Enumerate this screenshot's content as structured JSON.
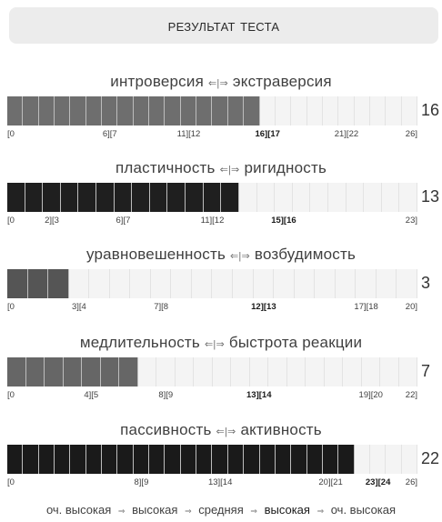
{
  "header": {
    "title": "Результат теста"
  },
  "scales": [
    {
      "left_label": "интроверсия",
      "right_label": "экстраверсия",
      "arrows": "⇐|⇒",
      "value": "16",
      "max": 26,
      "fill_color": "#6e6e6e",
      "tick_labels": [
        {
          "text": "[0",
          "at": 0,
          "bold": false
        },
        {
          "text": "6][7",
          "at": 6.5,
          "bold": false
        },
        {
          "text": "11][12",
          "at": 11.5,
          "bold": false
        },
        {
          "text": "16][17",
          "at": 16.5,
          "bold": true
        },
        {
          "text": "21][22",
          "at": 21.5,
          "bold": false
        },
        {
          "text": "26]",
          "at": 26,
          "bold": false
        }
      ]
    },
    {
      "left_label": "пластичность",
      "right_label": "ригидность",
      "arrows": "⇐|⇒",
      "value": "13",
      "max": 23,
      "fill_color": "#1f1f1f",
      "tick_labels": [
        {
          "text": "[0",
          "at": 0,
          "bold": false
        },
        {
          "text": "2][3",
          "at": 2.5,
          "bold": false
        },
        {
          "text": "6][7",
          "at": 6.5,
          "bold": false
        },
        {
          "text": "11][12",
          "at": 11.5,
          "bold": false
        },
        {
          "text": "15][16",
          "at": 15.5,
          "bold": true
        },
        {
          "text": "23]",
          "at": 23,
          "bold": false
        }
      ]
    },
    {
      "left_label": "уравновешенность",
      "right_label": "возбудимость",
      "arrows": "⇐|⇒",
      "value": "3",
      "max": 20,
      "fill_color": "#555555",
      "tick_labels": [
        {
          "text": "[0",
          "at": 0,
          "bold": false
        },
        {
          "text": "3][4",
          "at": 3.5,
          "bold": false
        },
        {
          "text": "7][8",
          "at": 7.5,
          "bold": false
        },
        {
          "text": "12][13",
          "at": 12.5,
          "bold": true
        },
        {
          "text": "17][18",
          "at": 17.5,
          "bold": false
        },
        {
          "text": "20]",
          "at": 20,
          "bold": false
        }
      ]
    },
    {
      "left_label": "медлительность",
      "right_label": "быстрота реакции",
      "arrows": "⇐|⇒",
      "value": "7",
      "max": 22,
      "fill_color": "#666666",
      "tick_labels": [
        {
          "text": "[0",
          "at": 0,
          "bold": false
        },
        {
          "text": "4][5",
          "at": 4.5,
          "bold": false
        },
        {
          "text": "8][9",
          "at": 8.5,
          "bold": false
        },
        {
          "text": "13][14",
          "at": 13.5,
          "bold": true
        },
        {
          "text": "19][20",
          "at": 19.5,
          "bold": false
        },
        {
          "text": "22]",
          "at": 22,
          "bold": false
        }
      ]
    },
    {
      "left_label": "пассивность",
      "right_label": "активность",
      "arrows": "⇐|⇒",
      "value": "22",
      "max": 26,
      "fill_color": "#1a1a1a",
      "tick_labels": [
        {
          "text": "[0",
          "at": 0,
          "bold": false
        },
        {
          "text": "8][9",
          "at": 8.5,
          "bold": false
        },
        {
          "text": "13][14",
          "at": 13.5,
          "bold": false
        },
        {
          "text": "20][21",
          "at": 20.5,
          "bold": false
        },
        {
          "text": "23][24",
          "at": 23.5,
          "bold": true
        },
        {
          "text": "26]",
          "at": 26,
          "bold": false
        }
      ]
    }
  ],
  "legend": {
    "levels": [
      "оч. высокая",
      "высокая",
      "средняя",
      "высокая",
      "оч. высокая"
    ],
    "arrow": "⇒"
  }
}
